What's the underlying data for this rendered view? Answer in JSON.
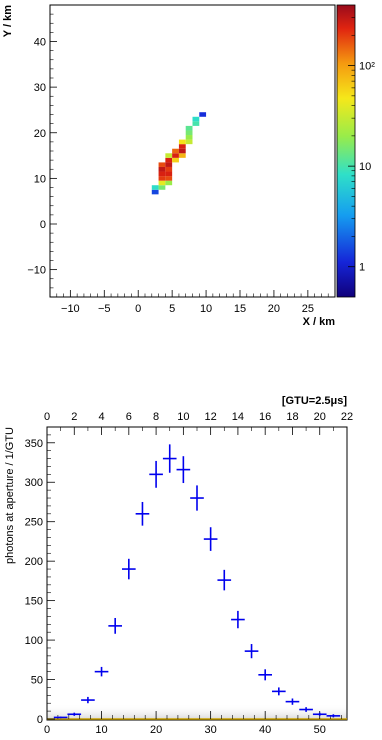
{
  "chart_data": [
    {
      "type": "heatmap",
      "xlabel": "X / km",
      "ylabel": "Y / km",
      "xlim": [
        -13,
        29
      ],
      "ylim": [
        -16,
        48
      ],
      "xticks": [
        "−10",
        "−5",
        "0",
        "5",
        "10",
        "15",
        "20",
        "25"
      ],
      "yticks": [
        "−10",
        "0",
        "10",
        "20",
        "30",
        "40"
      ],
      "colorbar": {
        "scale": "log",
        "range": [
          0.5,
          400
        ],
        "tick_labels": [
          "1",
          "10",
          "10²"
        ]
      },
      "bin_size": 1,
      "cells": [
        {
          "x": 2.5,
          "y": 7.0,
          "v": 1.5
        },
        {
          "x": 2.5,
          "y": 8.0,
          "v": 8
        },
        {
          "x": 3.5,
          "y": 8.0,
          "v": 15
        },
        {
          "x": 3.5,
          "y": 9.0,
          "v": 40
        },
        {
          "x": 3.5,
          "y": 10.0,
          "v": 200
        },
        {
          "x": 3.5,
          "y": 11.0,
          "v": 250
        },
        {
          "x": 3.5,
          "y": 12.0,
          "v": 300
        },
        {
          "x": 3.5,
          "y": 13.0,
          "v": 180
        },
        {
          "x": 4.5,
          "y": 9.0,
          "v": 20
        },
        {
          "x": 4.5,
          "y": 10.0,
          "v": 180
        },
        {
          "x": 4.5,
          "y": 11.0,
          "v": 250
        },
        {
          "x": 4.5,
          "y": 12.0,
          "v": 200
        },
        {
          "x": 4.5,
          "y": 13.0,
          "v": 300
        },
        {
          "x": 4.5,
          "y": 14.0,
          "v": 250
        },
        {
          "x": 4.5,
          "y": 15.0,
          "v": 30
        },
        {
          "x": 5.5,
          "y": 14.0,
          "v": 60
        },
        {
          "x": 5.5,
          "y": 15.0,
          "v": 250
        },
        {
          "x": 5.5,
          "y": 16.0,
          "v": 150
        },
        {
          "x": 6.5,
          "y": 15.0,
          "v": 80
        },
        {
          "x": 6.5,
          "y": 16.0,
          "v": 300
        },
        {
          "x": 6.5,
          "y": 17.0,
          "v": 250
        },
        {
          "x": 6.5,
          "y": 18.0,
          "v": 50
        },
        {
          "x": 7.5,
          "y": 18.0,
          "v": 30
        },
        {
          "x": 7.5,
          "y": 19.0,
          "v": 20
        },
        {
          "x": 7.5,
          "y": 20.0,
          "v": 15
        },
        {
          "x": 7.5,
          "y": 21.0,
          "v": 12
        },
        {
          "x": 8.5,
          "y": 22.0,
          "v": 10
        },
        {
          "x": 8.5,
          "y": 23.0,
          "v": 8
        },
        {
          "x": 9.5,
          "y": 24.0,
          "v": 1.2
        }
      ]
    },
    {
      "type": "scatter",
      "ylabel": "photons at aperture / 1/GTU",
      "xlim": [
        0,
        55
      ],
      "ylim": [
        0,
        370
      ],
      "xticks": [
        "0",
        "10",
        "20",
        "30",
        "40",
        "50"
      ],
      "yticks": [
        "0",
        "50",
        "100",
        "150",
        "200",
        "250",
        "300",
        "350"
      ],
      "top_axis_label": "[GTU=2.5μs]",
      "top_axis_range": [
        0,
        22
      ],
      "top_ticks": [
        "0",
        "2",
        "4",
        "6",
        "8",
        "10",
        "12",
        "14",
        "16",
        "18",
        "20",
        "22"
      ],
      "series": [
        {
          "color": "#0000ee",
          "x": [
            2.5,
            5,
            7.5,
            10,
            12.5,
            15,
            17.5,
            20,
            22.5,
            25,
            27.5,
            30,
            32.5,
            35,
            37.5,
            40,
            42.5,
            45,
            47.5,
            50,
            52.5
          ],
          "xerr": 1.25,
          "y": [
            2,
            6,
            24,
            60,
            118,
            190,
            260,
            310,
            330,
            316,
            280,
            228,
            176,
            126,
            86,
            56,
            35,
            22,
            12,
            6,
            4
          ],
          "yerr": [
            1,
            2,
            4,
            6,
            10,
            13,
            15,
            17,
            18,
            17,
            16,
            15,
            13,
            11,
            9,
            7,
            5,
            4,
            3,
            2,
            2
          ]
        }
      ]
    }
  ]
}
